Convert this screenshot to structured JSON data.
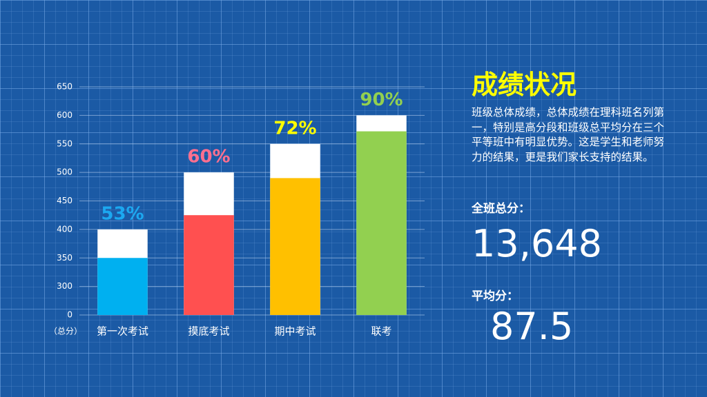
{
  "chart_data": {
    "type": "bar",
    "categories": [
      "第一次考试",
      "摸底考试",
      "期中考试",
      "联考"
    ],
    "totals": [
      400,
      500,
      550,
      600
    ],
    "values": [
      350,
      425,
      490,
      572
    ],
    "colors": [
      "#00b0f0",
      "#ff5050",
      "#ffc000",
      "#92d050"
    ],
    "total_color": "#ffffff",
    "percent_labels": [
      "53%",
      "60%",
      "72%",
      "90%"
    ],
    "percent_label_colors": [
      "#1ca8f0",
      "#ff6f8f",
      "#ffff00",
      "#92d050"
    ],
    "y_unit_label": "（总分）",
    "ylim": [
      0,
      650
    ],
    "yticks": [
      0,
      300,
      350,
      400,
      450,
      500,
      550,
      600,
      650
    ],
    "axis_break": [
      0,
      300
    ],
    "grid": true
  },
  "panel": {
    "title": "成绩状况",
    "description": "班级总体成绩，总体成绩在理科班名列第一，特别是高分段和班级总平均分在三个平等班中有明显优势。这是学生和老师努力的结果，更是我们家长支持的结果。",
    "total_label": "全班总分：",
    "total_value": "13,648",
    "average_label": "平均分：",
    "average_value": "87.5"
  }
}
